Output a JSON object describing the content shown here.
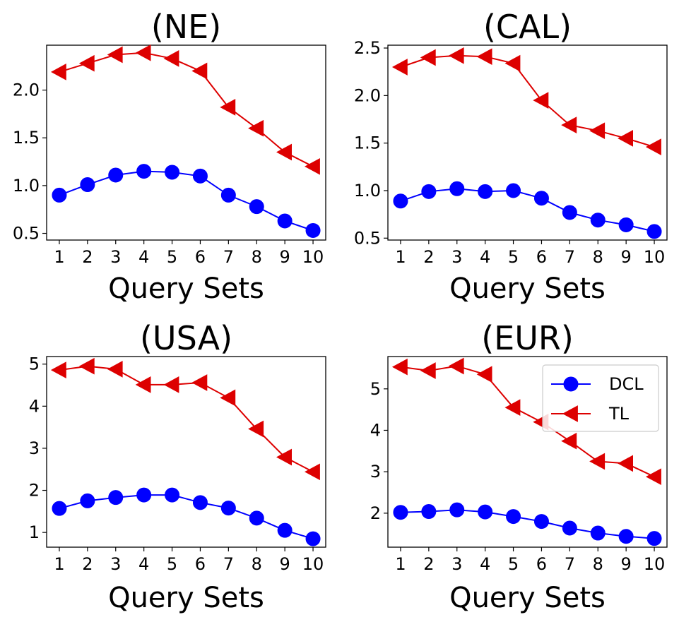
{
  "colors": {
    "DCL": "#0000ff",
    "TL": "#dd0000",
    "background": "#ffffff",
    "axis": "#000000"
  },
  "legend": {
    "placement": "upper-right",
    "panel": 3,
    "entries": [
      {
        "series": "DCL",
        "label": "DCL",
        "marker": "circle"
      },
      {
        "series": "TL",
        "label": "TL",
        "marker": "triangle-left"
      }
    ]
  },
  "chart_data": [
    {
      "type": "line",
      "title": "(NE)",
      "xlabel": "Query Sets",
      "ylabel": "",
      "x": [
        1,
        2,
        3,
        4,
        5,
        6,
        7,
        8,
        9,
        10
      ],
      "xticks": [
        "1",
        "2",
        "3",
        "4",
        "5",
        "6",
        "7",
        "8",
        "9",
        "10"
      ],
      "xlim": [
        0.55,
        10.45
      ],
      "ylim": [
        0.43,
        2.47
      ],
      "yticks": [
        0.5,
        1.0,
        1.5,
        2.0
      ],
      "ytick_labels": [
        "0.5",
        "1.0",
        "1.5",
        "2.0"
      ],
      "grid": false,
      "series": [
        {
          "name": "DCL",
          "marker": "circle",
          "values": [
            0.9,
            1.01,
            1.11,
            1.15,
            1.14,
            1.1,
            0.9,
            0.78,
            0.63,
            0.53
          ]
        },
        {
          "name": "TL",
          "marker": "triangle-left",
          "values": [
            2.19,
            2.28,
            2.37,
            2.39,
            2.33,
            2.2,
            1.82,
            1.6,
            1.35,
            1.2
          ]
        }
      ]
    },
    {
      "type": "line",
      "title": "(CAL)",
      "xlabel": "Query Sets",
      "ylabel": "",
      "x": [
        1,
        2,
        3,
        4,
        5,
        6,
        7,
        8,
        9,
        10
      ],
      "xticks": [
        "1",
        "2",
        "3",
        "4",
        "5",
        "6",
        "7",
        "8",
        "9",
        "10"
      ],
      "xlim": [
        0.55,
        10.45
      ],
      "ylim": [
        0.48,
        2.53
      ],
      "yticks": [
        0.5,
        1.0,
        1.5,
        2.0,
        2.5
      ],
      "ytick_labels": [
        "0.5",
        "1.0",
        "1.5",
        "2.0",
        "2.5"
      ],
      "grid": false,
      "series": [
        {
          "name": "DCL",
          "marker": "circle",
          "values": [
            0.89,
            0.99,
            1.02,
            0.99,
            1.0,
            0.92,
            0.77,
            0.69,
            0.64,
            0.57
          ]
        },
        {
          "name": "TL",
          "marker": "triangle-left",
          "values": [
            2.3,
            2.4,
            2.42,
            2.41,
            2.34,
            1.95,
            1.69,
            1.63,
            1.55,
            1.46
          ]
        }
      ]
    },
    {
      "type": "line",
      "title": "(USA)",
      "xlabel": "Query Sets",
      "ylabel": "",
      "x": [
        1,
        2,
        3,
        4,
        5,
        6,
        7,
        8,
        9,
        10
      ],
      "xticks": [
        "1",
        "2",
        "3",
        "4",
        "5",
        "6",
        "7",
        "8",
        "9",
        "10"
      ],
      "xlim": [
        0.55,
        10.45
      ],
      "ylim": [
        0.65,
        5.18
      ],
      "yticks": [
        1,
        2,
        3,
        4,
        5
      ],
      "ytick_labels": [
        "1",
        "2",
        "3",
        "4",
        "5"
      ],
      "grid": false,
      "series": [
        {
          "name": "DCL",
          "marker": "circle",
          "values": [
            1.57,
            1.75,
            1.83,
            1.89,
            1.89,
            1.71,
            1.58,
            1.34,
            1.05,
            0.85
          ]
        },
        {
          "name": "TL",
          "marker": "triangle-left",
          "values": [
            4.86,
            4.95,
            4.88,
            4.51,
            4.51,
            4.56,
            4.2,
            3.46,
            2.79,
            2.44
          ]
        }
      ]
    },
    {
      "type": "line",
      "title": "(EUR)",
      "xlabel": "Query Sets",
      "ylabel": "",
      "x": [
        1,
        2,
        3,
        4,
        5,
        6,
        7,
        8,
        9,
        10
      ],
      "xticks": [
        "1",
        "2",
        "3",
        "4",
        "5",
        "6",
        "7",
        "8",
        "9",
        "10"
      ],
      "xlim": [
        0.55,
        10.45
      ],
      "ylim": [
        1.18,
        5.78
      ],
      "yticks": [
        2,
        3,
        4,
        5
      ],
      "ytick_labels": [
        "2",
        "3",
        "4",
        "5"
      ],
      "grid": false,
      "series": [
        {
          "name": "DCL",
          "marker": "circle",
          "values": [
            2.02,
            2.04,
            2.08,
            2.03,
            1.92,
            1.8,
            1.64,
            1.52,
            1.44,
            1.39
          ]
        },
        {
          "name": "TL",
          "marker": "triangle-left",
          "values": [
            5.53,
            5.44,
            5.55,
            5.35,
            4.55,
            4.2,
            3.74,
            3.25,
            3.2,
            2.88
          ]
        }
      ]
    }
  ]
}
